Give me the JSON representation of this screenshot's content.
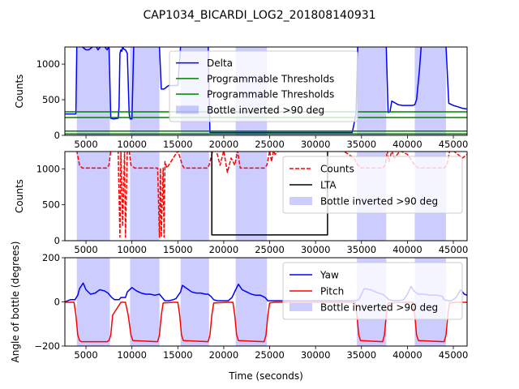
{
  "figure": {
    "title": "CAP1034_BICARDI_LOG2_201808140931"
  },
  "chart_data": [
    {
      "type": "line",
      "panel": "delta",
      "ylabel": "Counts",
      "xlim": [
        2700,
        46500
      ],
      "ylim": [
        0,
        1240
      ],
      "xticks": [
        5000,
        10000,
        15000,
        20000,
        25000,
        30000,
        35000,
        40000,
        45000
      ],
      "yticks": [
        0,
        500,
        1000
      ],
      "inverted_spans": [
        [
          4000,
          7600
        ],
        [
          9800,
          13000
        ],
        [
          15300,
          18400
        ],
        [
          21300,
          24700
        ],
        [
          34500,
          37700
        ],
        [
          40800,
          44200
        ]
      ],
      "series": [
        {
          "name": "Delta",
          "color": "#0000ff",
          "x": [
            2700,
            3900,
            4000,
            4200,
            4500,
            5000,
            5300,
            5800,
            6100,
            6300,
            6600,
            7000,
            7300,
            7500,
            7700,
            8000,
            8500,
            8600,
            8700,
            8800,
            8900,
            9000,
            9100,
            9300,
            9500,
            9700,
            9800,
            10000,
            10200,
            10500,
            11000,
            11500,
            12000,
            12500,
            12800,
            13000,
            13200,
            13500,
            14000,
            14500,
            15000,
            15300,
            15600,
            16000,
            16500,
            17000,
            17500,
            18000,
            18300,
            18500,
            18700,
            19000,
            20000,
            21000,
            21300,
            21600,
            22000,
            22500,
            23000,
            23500,
            24000,
            24400,
            24700,
            25000,
            26000,
            28000,
            30000,
            32000,
            34000,
            34400,
            34600,
            34700,
            34800,
            35000,
            35500,
            36000,
            36500,
            37000,
            37400,
            37700,
            37900,
            38100,
            38300,
            38600,
            39000,
            39500,
            40000,
            40500,
            40800,
            41000,
            41300,
            41500,
            42000,
            42500,
            43000,
            43500,
            44000,
            44200,
            44500,
            45000,
            45500,
            46000,
            46500
          ],
          "values": [
            300,
            300,
            1250,
            1250,
            1250,
            1200,
            1200,
            1250,
            1250,
            1200,
            1250,
            1250,
            1200,
            1250,
            240,
            230,
            240,
            400,
            1150,
            1200,
            1180,
            1250,
            1210,
            1200,
            1150,
            300,
            230,
            230,
            1250,
            1250,
            1250,
            1250,
            1250,
            1250,
            1250,
            1250,
            650,
            650,
            700,
            700,
            700,
            1250,
            1250,
            1250,
            1250,
            1250,
            1250,
            1250,
            1250,
            40,
            40,
            40,
            40,
            40,
            40,
            40,
            40,
            40,
            40,
            40,
            40,
            40,
            40,
            40,
            40,
            40,
            40,
            40,
            40,
            300,
            1250,
            1250,
            1250,
            1250,
            1250,
            1250,
            1250,
            1250,
            1250,
            1250,
            320,
            330,
            480,
            460,
            430,
            420,
            420,
            420,
            430,
            500,
            900,
            1250,
            1250,
            1250,
            1250,
            1250,
            1250,
            1250,
            450,
            420,
            400,
            380,
            370
          ]
        },
        {
          "name": "Programmable Thresholds",
          "color": "#008000",
          "x": [
            2700,
            46500
          ],
          "values": [
            330,
            330
          ],
          "extra": [
            250,
            250
          ]
        },
        {
          "name": "Programmable Thresholds",
          "color": "#008000",
          "x": [
            2700,
            46500
          ],
          "values": [
            60,
            60
          ],
          "extra": [
            20,
            20
          ]
        }
      ],
      "legend": {
        "position": "center",
        "entries": [
          "Delta",
          "Programmable Thresholds",
          "Programmable Thresholds",
          "Bottle inverted >90 deg"
        ]
      }
    },
    {
      "type": "line",
      "panel": "counts",
      "ylabel": "Counts",
      "xlim": [
        2700,
        46500
      ],
      "ylim": [
        0,
        1240
      ],
      "xticks": [
        5000,
        10000,
        15000,
        20000,
        25000,
        30000,
        35000,
        40000,
        45000
      ],
      "yticks": [
        0,
        500,
        1000
      ],
      "inverted_spans": [
        [
          4000,
          7600
        ],
        [
          9800,
          13000
        ],
        [
          15300,
          18400
        ],
        [
          21300,
          24700
        ],
        [
          34500,
          37700
        ],
        [
          40800,
          44200
        ]
      ],
      "series": [
        {
          "name": "Counts",
          "color": "#ff0000",
          "dash": true,
          "x": [
            2700,
            3500,
            4000,
            4300,
            4600,
            7200,
            7500,
            7700,
            8000,
            8500,
            8700,
            8800,
            9000,
            9200,
            9300,
            9500,
            9700,
            9900,
            10300,
            12800,
            13000,
            13100,
            13200,
            13400,
            13500,
            13600,
            13800,
            14000,
            15000,
            15500,
            15700,
            18200,
            18400,
            18600,
            18800,
            19200,
            19600,
            20000,
            20400,
            20800,
            21200,
            21500,
            21800,
            24400,
            24700,
            25000,
            25200,
            25400,
            25600,
            26000,
            28000,
            30000,
            31500,
            33000,
            34200,
            34600,
            35000,
            37300,
            37600,
            37800,
            38000,
            38300,
            38600,
            39200,
            40000,
            40800,
            41200,
            44000,
            44300,
            44600,
            45000,
            46000,
            46500
          ],
          "values": [
            1250,
            1250,
            1250,
            1050,
            1010,
            1010,
            1050,
            1250,
            1250,
            1250,
            50,
            1250,
            200,
            1250,
            50,
            1250,
            1250,
            1050,
            1010,
            1010,
            50,
            1010,
            50,
            1010,
            50,
            1100,
            1010,
            1050,
            1250,
            1050,
            1010,
            1010,
            1050,
            1150,
            1250,
            1250,
            1050,
            1250,
            950,
            1150,
            1050,
            1250,
            1010,
            1010,
            1050,
            1250,
            1100,
            1250,
            1200,
            1250,
            1250,
            1250,
            1250,
            1250,
            1150,
            1050,
            1010,
            1010,
            1050,
            1250,
            1100,
            1250,
            1150,
            1250,
            1200,
            1050,
            1010,
            1010,
            1050,
            1250,
            1250,
            1150,
            1200
          ]
        },
        {
          "name": "LTA",
          "color": "#000000",
          "x": [
            2700,
            18700,
            18700,
            18800,
            31300,
            31300,
            46500
          ],
          "values": [
            1250,
            1250,
            80,
            80,
            80,
            1250,
            1250
          ]
        }
      ],
      "legend": {
        "position": "center right",
        "entries": [
          "Counts",
          "LTA",
          "Bottle inverted >90 deg"
        ]
      }
    },
    {
      "type": "line",
      "panel": "angle",
      "ylabel": "Angle of bottle (degrees)",
      "xlabel": "Time (seconds)",
      "xlim": [
        2700,
        46500
      ],
      "ylim": [
        -200,
        200
      ],
      "xticks": [
        5000,
        10000,
        15000,
        20000,
        25000,
        30000,
        35000,
        40000,
        45000
      ],
      "yticks": [
        -200,
        0,
        200
      ],
      "inverted_spans": [
        [
          4000,
          7600
        ],
        [
          9800,
          13000
        ],
        [
          15300,
          18400
        ],
        [
          21300,
          24700
        ],
        [
          34500,
          37700
        ],
        [
          40800,
          44200
        ]
      ],
      "series": [
        {
          "name": "Yaw",
          "color": "#0000ff",
          "x": [
            2700,
            3300,
            3800,
            4100,
            4300,
            4700,
            5000,
            5500,
            6000,
            6500,
            7000,
            7400,
            7800,
            8100,
            8600,
            8800,
            9300,
            9500,
            10000,
            10500,
            11000,
            11500,
            12000,
            12500,
            13000,
            13300,
            13600,
            14000,
            14500,
            14800,
            15300,
            15500,
            16000,
            16500,
            17000,
            17500,
            18000,
            18300,
            18600,
            18900,
            19300,
            20000,
            20500,
            20900,
            21300,
            21600,
            22000,
            22500,
            23000,
            23500,
            24000,
            24500,
            24800,
            25000,
            25500,
            26000,
            28000,
            30000,
            32000,
            34000,
            34300,
            34700,
            35300,
            36000,
            36800,
            37300,
            37600,
            38000,
            38500,
            39000,
            39600,
            40000,
            40400,
            40700,
            41200,
            41800,
            42500,
            43300,
            43800,
            44000,
            44400,
            44800,
            45300,
            45800,
            46200,
            46500
          ],
          "values": [
            0,
            10,
            10,
            30,
            60,
            85,
            55,
            35,
            40,
            55,
            50,
            40,
            20,
            10,
            10,
            20,
            20,
            45,
            65,
            50,
            40,
            35,
            35,
            30,
            35,
            20,
            5,
            5,
            10,
            15,
            45,
            75,
            60,
            45,
            40,
            40,
            35,
            35,
            25,
            10,
            5,
            5,
            5,
            20,
            55,
            80,
            55,
            45,
            35,
            30,
            30,
            20,
            5,
            5,
            5,
            5,
            5,
            5,
            5,
            5,
            5,
            10,
            60,
            55,
            40,
            35,
            25,
            10,
            5,
            5,
            10,
            35,
            70,
            50,
            35,
            35,
            30,
            30,
            25,
            10,
            5,
            5,
            20,
            55,
            35,
            30
          ]
        },
        {
          "name": "Pitch",
          "color": "#ff0000",
          "x": [
            2700,
            3700,
            3900,
            4100,
            4300,
            4500,
            7300,
            7500,
            7700,
            7900,
            8800,
            9300,
            9600,
            9900,
            10100,
            12800,
            13000,
            13200,
            13400,
            14500,
            15000,
            15200,
            15400,
            15600,
            18300,
            18500,
            18700,
            18900,
            20500,
            21000,
            21200,
            21400,
            21600,
            24400,
            24600,
            24800,
            25000,
            25500,
            34300,
            34500,
            34700,
            34900,
            37300,
            37500,
            37700,
            37900,
            40000,
            40600,
            40800,
            41000,
            41200,
            44000,
            44200,
            44400,
            44600,
            45500,
            46500
          ],
          "values": [
            -2,
            -2,
            -60,
            -150,
            -175,
            -180,
            -180,
            -175,
            -150,
            -60,
            -2,
            -2,
            -60,
            -150,
            -175,
            -180,
            -150,
            -60,
            -5,
            -2,
            -2,
            -60,
            -150,
            -175,
            -180,
            -150,
            -60,
            -5,
            -2,
            -2,
            -60,
            -150,
            -175,
            -180,
            -150,
            -60,
            -5,
            -2,
            -2,
            -60,
            -150,
            -175,
            -180,
            -150,
            -60,
            -5,
            -2,
            -2,
            -60,
            -150,
            -175,
            -180,
            -150,
            -60,
            -5,
            -2,
            -2
          ]
        }
      ],
      "legend": {
        "position": "upper right",
        "entries": [
          "Yaw",
          "Pitch",
          "Bottle inverted >90 deg"
        ]
      }
    }
  ]
}
